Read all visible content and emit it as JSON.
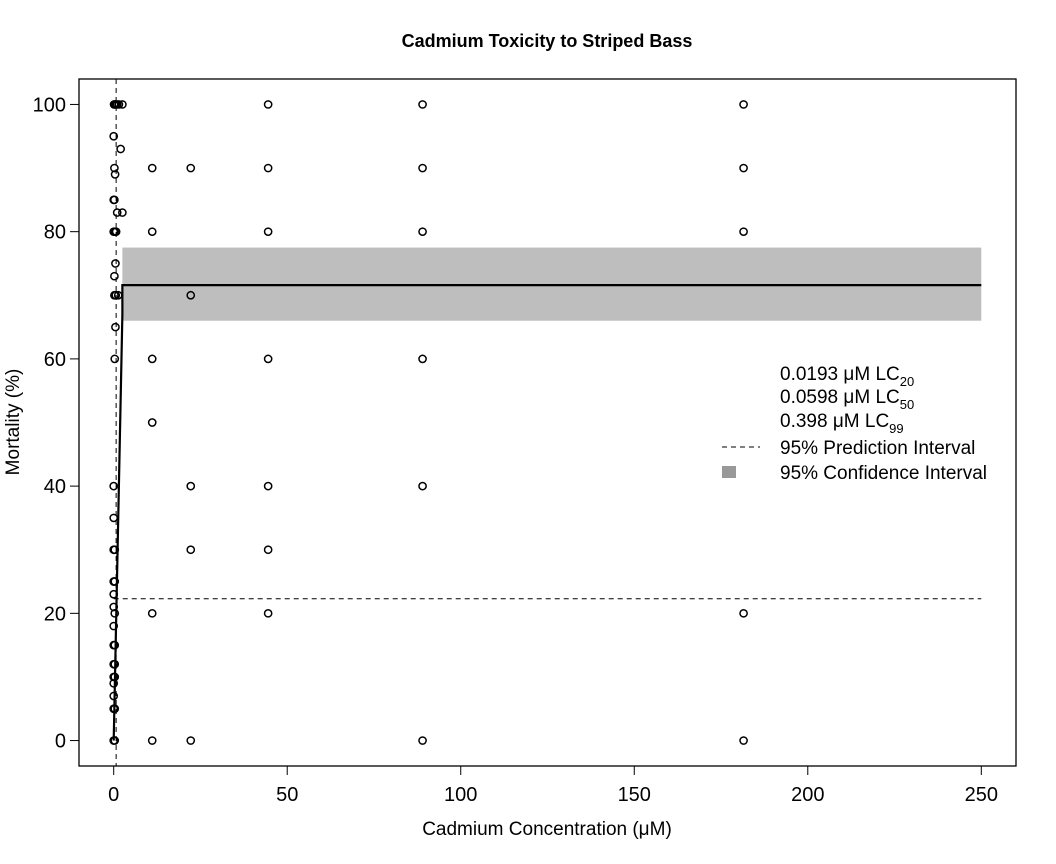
{
  "chart_data": {
    "type": "scatter",
    "title": "Cadmium Toxicity to Striped Bass",
    "xlabel": "Cadmium Concentration (μM)",
    "ylabel": "Mortality (%)",
    "xlim": [
      -10,
      260
    ],
    "ylim": [
      -4,
      104
    ],
    "xticks": [
      0,
      50,
      100,
      150,
      200,
      250
    ],
    "yticks": [
      0,
      20,
      40,
      60,
      80,
      100
    ],
    "grid": false,
    "points": [
      {
        "x": 0.1,
        "y": 100
      },
      {
        "x": 0.3,
        "y": 100
      },
      {
        "x": 0.6,
        "y": 100
      },
      {
        "x": 1.0,
        "y": 100
      },
      {
        "x": 1.5,
        "y": 100
      },
      {
        "x": 2.5,
        "y": 100
      },
      {
        "x": 0,
        "y": 95
      },
      {
        "x": 2,
        "y": 93
      },
      {
        "x": 0.2,
        "y": 90
      },
      {
        "x": 0.4,
        "y": 89
      },
      {
        "x": 0,
        "y": 85
      },
      {
        "x": 0.2,
        "y": 85
      },
      {
        "x": 1,
        "y": 83
      },
      {
        "x": 2.5,
        "y": 83
      },
      {
        "x": 0,
        "y": 80
      },
      {
        "x": 0.3,
        "y": 80
      },
      {
        "x": 0.7,
        "y": 80
      },
      {
        "x": 0.5,
        "y": 75
      },
      {
        "x": 0.2,
        "y": 73
      },
      {
        "x": 0.2,
        "y": 70
      },
      {
        "x": 0.6,
        "y": 70
      },
      {
        "x": 1.3,
        "y": 70
      },
      {
        "x": 0.5,
        "y": 65
      },
      {
        "x": 0.3,
        "y": 60
      },
      {
        "x": 0,
        "y": 40
      },
      {
        "x": 0,
        "y": 35
      },
      {
        "x": 0,
        "y": 30
      },
      {
        "x": 0.3,
        "y": 30
      },
      {
        "x": 0,
        "y": 25
      },
      {
        "x": 0.3,
        "y": 25
      },
      {
        "x": 0,
        "y": 23
      },
      {
        "x": 0,
        "y": 21
      },
      {
        "x": 0.3,
        "y": 20
      },
      {
        "x": 0,
        "y": 18
      },
      {
        "x": 0,
        "y": 15
      },
      {
        "x": 0.3,
        "y": 15
      },
      {
        "x": 0,
        "y": 12
      },
      {
        "x": 0.3,
        "y": 12
      },
      {
        "x": 0,
        "y": 10
      },
      {
        "x": 0.3,
        "y": 10
      },
      {
        "x": 0,
        "y": 9
      },
      {
        "x": 0,
        "y": 7
      },
      {
        "x": 0,
        "y": 5
      },
      {
        "x": 0.3,
        "y": 5
      },
      {
        "x": 0,
        "y": 0
      },
      {
        "x": 0.3,
        "y": 0
      },
      {
        "x": 11.1,
        "y": 90
      },
      {
        "x": 11.1,
        "y": 80
      },
      {
        "x": 11.1,
        "y": 60
      },
      {
        "x": 11.1,
        "y": 50
      },
      {
        "x": 11.1,
        "y": 20
      },
      {
        "x": 11.1,
        "y": 0
      },
      {
        "x": 22.2,
        "y": 90
      },
      {
        "x": 22.2,
        "y": 70
      },
      {
        "x": 22.2,
        "y": 40
      },
      {
        "x": 22.2,
        "y": 30
      },
      {
        "x": 22.2,
        "y": 0
      },
      {
        "x": 44.5,
        "y": 100
      },
      {
        "x": 44.5,
        "y": 90
      },
      {
        "x": 44.5,
        "y": 80
      },
      {
        "x": 44.5,
        "y": 60
      },
      {
        "x": 44.5,
        "y": 40
      },
      {
        "x": 44.5,
        "y": 30
      },
      {
        "x": 44.5,
        "y": 20
      },
      {
        "x": 89,
        "y": 100
      },
      {
        "x": 89,
        "y": 90
      },
      {
        "x": 89,
        "y": 80
      },
      {
        "x": 89,
        "y": 60
      },
      {
        "x": 89,
        "y": 40
      },
      {
        "x": 89,
        "y": 0
      },
      {
        "x": 181.5,
        "y": 100
      },
      {
        "x": 181.5,
        "y": 90
      },
      {
        "x": 181.5,
        "y": 80
      },
      {
        "x": 181.5,
        "y": 20
      },
      {
        "x": 181.5,
        "y": 0
      }
    ],
    "fit_line": {
      "x": [
        0,
        2.5,
        2.5,
        250
      ],
      "y": [
        0,
        67,
        71.6,
        71.6
      ]
    },
    "confidence_band": {
      "x": [
        2.5,
        250
      ],
      "lower": 66,
      "upper": 77.5,
      "color": "#bebebe"
    },
    "prediction_interval": {
      "y": 22.3,
      "x_vertical": 0.7,
      "vertical_range": [
        -4,
        104
      ]
    },
    "legend": {
      "placement": "right",
      "lc_entries": [
        {
          "value": "0.0193 μM LC",
          "sub": "20"
        },
        {
          "value": "0.0598 μM LC",
          "sub": "50"
        },
        {
          "value": "0.398 μM LC",
          "sub": "99"
        }
      ],
      "prediction_label": "95% Prediction Interval",
      "confidence_label": "95% Confidence Interval",
      "confidence_swatch_color": "#999999"
    }
  }
}
